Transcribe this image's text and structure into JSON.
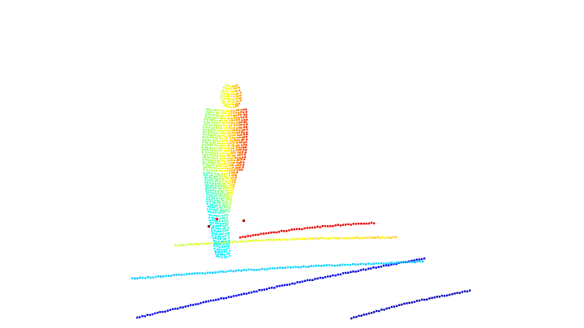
{
  "scene": {
    "background": "#ffffff",
    "colormap": "jet",
    "objects": [
      {
        "name": "pedestrian-point-cloud",
        "kind": "human figure"
      },
      {
        "name": "ground-scan-line",
        "kind": "lidar ring",
        "count": 5
      }
    ]
  }
}
